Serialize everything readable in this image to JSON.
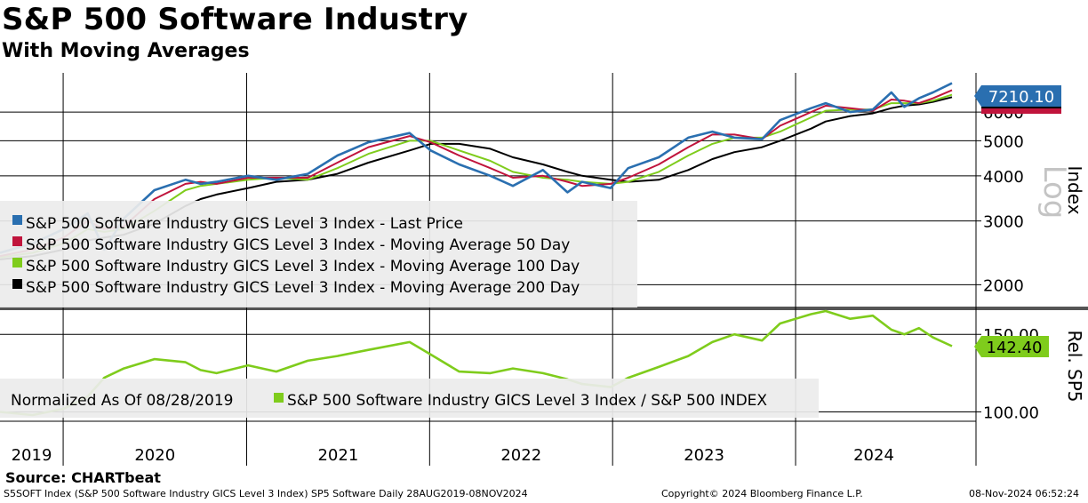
{
  "header": {
    "title": "S&P 500 Software Industry",
    "subtitle": "With Moving Averages"
  },
  "footer": {
    "source": "Source: CHARTbeat",
    "description": "S5SOFT Index (S&P 500 Software Industry GICS Level 3 Index) SP5 Software  Daily 28AUG2019-08NOV2024",
    "copyright": "Copyright© 2024 Bloomberg Finance L.P.",
    "timestamp": "08-Nov-2024 06:52:24"
  },
  "colors": {
    "last_price": "#2a6fb0",
    "ma50": "#c0143c",
    "ma100": "#7fcc1c",
    "ma200": "#000000",
    "relative": "#7fcc1c"
  },
  "chart_data": [
    {
      "type": "line",
      "axis_scale": "log",
      "scale_label": "Log",
      "ylabel": "Index",
      "ylim": [
        1750,
        7700
      ],
      "yticks": [
        "2000",
        "3000",
        "4000",
        "5000",
        "6000"
      ],
      "last_value_label": "7210.10",
      "x_axis": {
        "range": [
          "2019-08-28",
          "2024-11-08"
        ],
        "year_labels": [
          "2019",
          "2020",
          "2021",
          "2022",
          "2023",
          "2024"
        ]
      },
      "legend": {
        "placement": "left-middle",
        "entries": [
          "S&P 500 Software Industry GICS Level 3 Index - Last Price",
          "S&P 500 Software Industry GICS Level 3 Index - Moving Average 50 Day",
          "S&P 500 Software Industry GICS Level 3 Index - Moving Average 100 Day",
          "S&P 500 Software Industry GICS Level 3 Index - Moving Average 200 Day"
        ]
      },
      "x": [
        "2019-08-28",
        "2019-11-01",
        "2020-01-02",
        "2020-02-19",
        "2020-03-23",
        "2020-05-01",
        "2020-07-01",
        "2020-09-01",
        "2020-10-01",
        "2020-11-02",
        "2021-01-04",
        "2021-03-01",
        "2021-05-03",
        "2021-07-01",
        "2021-09-01",
        "2021-11-22",
        "2022-01-03",
        "2022-03-01",
        "2022-05-02",
        "2022-06-16",
        "2022-08-15",
        "2022-10-03",
        "2022-11-01",
        "2022-12-28",
        "2023-02-01",
        "2023-04-03",
        "2023-06-01",
        "2023-07-19",
        "2023-09-01",
        "2023-10-26",
        "2023-12-01",
        "2024-02-01",
        "2024-03-01",
        "2024-04-19",
        "2024-06-03",
        "2024-07-10",
        "2024-08-05",
        "2024-09-03",
        "2024-10-01",
        "2024-11-08"
      ],
      "series": [
        {
          "name": "S&P 500 Software Industry GICS Level 3 Index - Last Price",
          "values": [
            2450,
            2600,
            2850,
            3150,
            2500,
            3050,
            3650,
            3900,
            3800,
            3850,
            4000,
            3900,
            4050,
            4550,
            4950,
            5250,
            4700,
            4300,
            4000,
            3750,
            4150,
            3600,
            3850,
            3700,
            4200,
            4500,
            5100,
            5300,
            5100,
            5050,
            5700,
            6150,
            6350,
            6000,
            6100,
            6800,
            6200,
            6550,
            6800,
            7210.1
          ]
        },
        {
          "name": "S&P 500 Software Industry GICS Level 3 Index - Moving Average 50 Day",
          "values": [
            2400,
            2500,
            2700,
            3000,
            2850,
            2900,
            3450,
            3800,
            3850,
            3800,
            3950,
            3950,
            3950,
            4350,
            4800,
            5150,
            4950,
            4550,
            4200,
            3950,
            4000,
            3850,
            3750,
            3800,
            3950,
            4300,
            4800,
            5200,
            5200,
            5050,
            5500,
            6000,
            6250,
            6150,
            6050,
            6500,
            6450,
            6350,
            6550,
            6900
          ]
        },
        {
          "name": "S&P 500 Software Industry GICS Level 3 Index - Moving Average 100 Day",
          "values": [
            2380,
            2450,
            2600,
            2850,
            2800,
            2850,
            3200,
            3650,
            3750,
            3800,
            3900,
            3950,
            3900,
            4200,
            4600,
            5000,
            5000,
            4700,
            4400,
            4100,
            3950,
            3900,
            3850,
            3800,
            3850,
            4100,
            4550,
            4900,
            5100,
            5100,
            5300,
            5800,
            6050,
            6100,
            6100,
            6350,
            6350,
            6350,
            6450,
            6700
          ]
        },
        {
          "name": "S&P 500 Software Industry GICS Level 3 Index - Moving Average 200 Day",
          "values": [
            2350,
            2400,
            2500,
            2650,
            2700,
            2750,
            2950,
            3300,
            3450,
            3550,
            3700,
            3850,
            3900,
            4050,
            4350,
            4700,
            4900,
            4900,
            4750,
            4500,
            4300,
            4100,
            4000,
            3900,
            3850,
            3900,
            4150,
            4450,
            4650,
            4800,
            5000,
            5400,
            5650,
            5850,
            5950,
            6150,
            6250,
            6300,
            6400,
            6600
          ]
        }
      ]
    },
    {
      "type": "line",
      "ylabel": "Rel. SP5",
      "ylim": [
        94,
        165
      ],
      "yticks": [
        "100.00",
        "150.00"
      ],
      "last_value_label": "142.40",
      "legend": {
        "placement": "bottom-left",
        "entries": [
          "Normalized As Of 08/28/2019",
          "S&P 500 Software Industry GICS Level 3 Index / S&P 500 INDEX"
        ]
      },
      "x": [
        "2019-08-28",
        "2019-11-01",
        "2020-01-02",
        "2020-02-19",
        "2020-03-23",
        "2020-05-01",
        "2020-07-01",
        "2020-09-01",
        "2020-10-01",
        "2020-11-02",
        "2021-01-04",
        "2021-03-01",
        "2021-05-03",
        "2021-07-01",
        "2021-09-01",
        "2021-11-22",
        "2022-01-03",
        "2022-03-01",
        "2022-05-02",
        "2022-06-16",
        "2022-08-15",
        "2022-10-03",
        "2022-11-01",
        "2022-12-28",
        "2023-02-01",
        "2023-04-03",
        "2023-06-01",
        "2023-07-19",
        "2023-09-01",
        "2023-10-26",
        "2023-12-01",
        "2024-02-01",
        "2024-03-01",
        "2024-04-19",
        "2024-06-03",
        "2024-07-10",
        "2024-08-05",
        "2024-09-03",
        "2024-10-01",
        "2024-11-08"
      ],
      "series": [
        {
          "name": "S&P 500 Software Industry GICS Level 3 Index / S&P 500 INDEX",
          "values": [
            100,
            98,
            102,
            110,
            122,
            128,
            134,
            132,
            127,
            125,
            130,
            126,
            133,
            136,
            140,
            145,
            137,
            126,
            125,
            128,
            125,
            121,
            118,
            116,
            122,
            129,
            136,
            145,
            150,
            146,
            157,
            163,
            165,
            160,
            162,
            153,
            150,
            154,
            148,
            142.4
          ]
        }
      ]
    }
  ]
}
